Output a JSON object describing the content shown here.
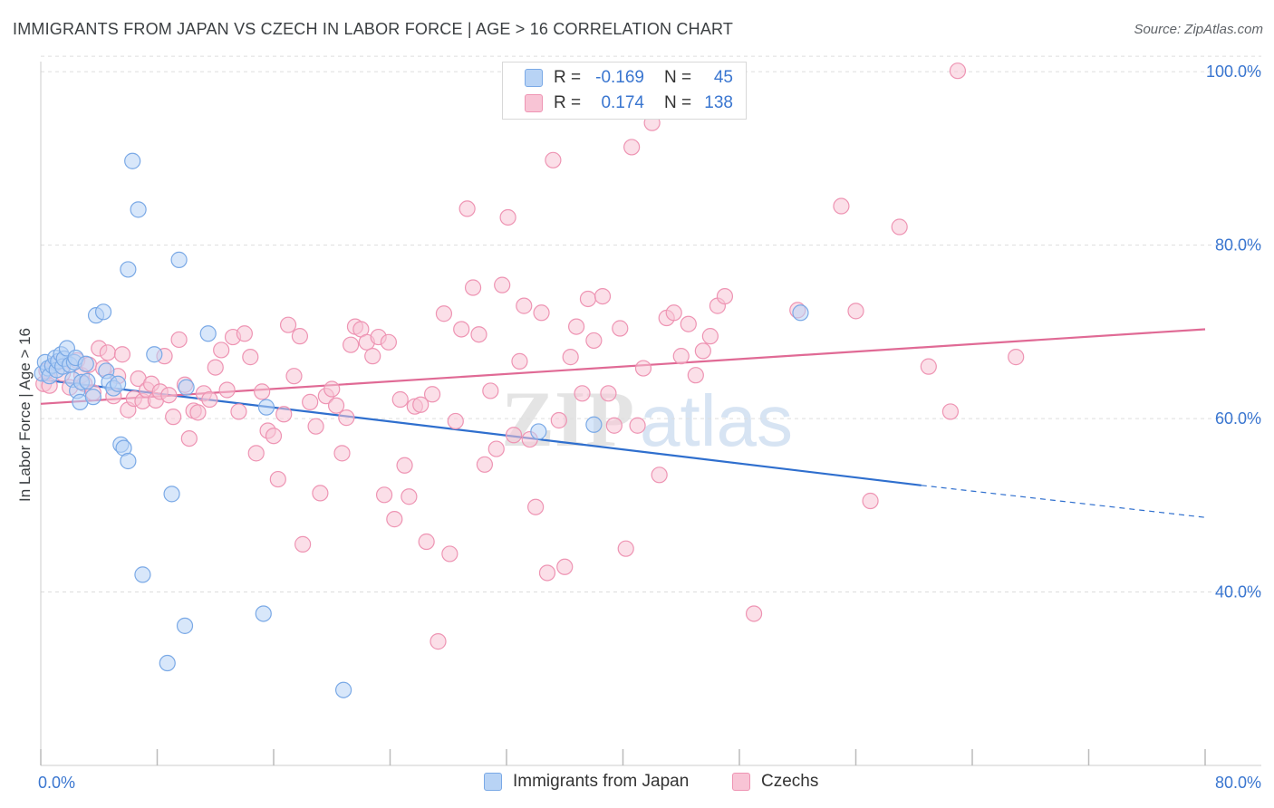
{
  "header": {
    "title": "IMMIGRANTS FROM JAPAN VS CZECH IN LABOR FORCE | AGE > 16 CORRELATION CHART",
    "source": "Source: ZipAtlas.com"
  },
  "watermark": {
    "part1": "ZIP",
    "part2": "atlas"
  },
  "legend": {
    "rows": [
      {
        "r_label": "R =",
        "r_value": "-0.169",
        "n_label": "N =",
        "n_value": "45"
      },
      {
        "r_label": "R =",
        "r_value": "0.174",
        "n_label": "N =",
        "n_value": "138"
      }
    ]
  },
  "chart_data": {
    "type": "scatter",
    "ylabel": "In Labor Force | Age > 16",
    "xlim": [
      0,
      80
    ],
    "ylim": [
      20,
      102
    ],
    "x_tick_labels": [
      {
        "value": 0,
        "label": "0.0%"
      },
      {
        "value": 80,
        "label": "80.0%"
      }
    ],
    "x_minor_ticks": [
      8,
      16,
      24,
      32,
      40,
      48,
      56,
      64,
      72
    ],
    "y_tick_labels": [
      {
        "value": 40,
        "label": "40.0%"
      },
      {
        "value": 60,
        "label": "60.0%"
      },
      {
        "value": 80,
        "label": "80.0%"
      },
      {
        "value": 100,
        "label": "100.0%"
      }
    ],
    "grid": true,
    "legend_position": "top-center",
    "colors": {
      "japan_fill": "#b8d3f5",
      "japan_stroke": "#7aa9e6",
      "japan_line": "#2f6fce",
      "czech_fill": "#f8c4d5",
      "czech_stroke": "#ee94b3",
      "czech_line": "#e06a95",
      "value_text": "#3a76d0",
      "grid": "#dddddd"
    },
    "series": [
      {
        "name": "Immigrants from Japan",
        "key": "japan",
        "trend": {
          "x0": 0,
          "y0": 64.5,
          "x1": 60.5,
          "y1": 52.3,
          "dash_to_x": 80,
          "dash_to_y": 48.6
        },
        "points": [
          [
            0.1,
            65.2
          ],
          [
            0.3,
            66.5
          ],
          [
            0.5,
            65.8
          ],
          [
            0.6,
            64.9
          ],
          [
            0.8,
            66.1
          ],
          [
            1.0,
            67.0
          ],
          [
            1.1,
            65.6
          ],
          [
            1.2,
            66.6
          ],
          [
            1.4,
            67.4
          ],
          [
            1.5,
            66.0
          ],
          [
            1.6,
            66.9
          ],
          [
            1.8,
            68.1
          ],
          [
            2.0,
            66.2
          ],
          [
            2.2,
            64.5
          ],
          [
            2.3,
            66.5
          ],
          [
            2.4,
            67.0
          ],
          [
            2.5,
            63.2
          ],
          [
            2.7,
            61.9
          ],
          [
            2.8,
            64.2
          ],
          [
            3.1,
            66.3
          ],
          [
            3.2,
            64.3
          ],
          [
            3.6,
            62.5
          ],
          [
            3.8,
            71.9
          ],
          [
            4.3,
            72.3
          ],
          [
            4.5,
            65.5
          ],
          [
            4.7,
            64.2
          ],
          [
            5.0,
            63.5
          ],
          [
            5.3,
            64.0
          ],
          [
            5.5,
            57.0
          ],
          [
            5.7,
            56.6
          ],
          [
            6.0,
            55.1
          ],
          [
            6.0,
            77.2
          ],
          [
            6.3,
            89.7
          ],
          [
            6.7,
            84.1
          ],
          [
            7.0,
            42.0
          ],
          [
            7.8,
            67.4
          ],
          [
            8.7,
            31.8
          ],
          [
            9.0,
            51.3
          ],
          [
            9.5,
            78.3
          ],
          [
            9.9,
            36.1
          ],
          [
            10.0,
            63.6
          ],
          [
            11.5,
            69.8
          ],
          [
            15.5,
            61.3
          ],
          [
            15.3,
            37.5
          ],
          [
            20.8,
            28.7
          ],
          [
            34.2,
            58.5
          ],
          [
            38.0,
            59.3
          ],
          [
            52.2,
            72.2
          ]
        ]
      },
      {
        "name": "Czechs",
        "key": "czech",
        "trend": {
          "x0": 0,
          "y0": 61.7,
          "x1": 80,
          "y1": 70.3
        },
        "points": [
          [
            0.2,
            64.0
          ],
          [
            0.4,
            65.5
          ],
          [
            0.6,
            63.8
          ],
          [
            1.0,
            66.3
          ],
          [
            1.5,
            65.2
          ],
          [
            2.0,
            63.6
          ],
          [
            2.5,
            66.7
          ],
          [
            2.8,
            65.0
          ],
          [
            3.0,
            64.0
          ],
          [
            3.3,
            66.2
          ],
          [
            3.6,
            63.0
          ],
          [
            4.0,
            68.1
          ],
          [
            4.3,
            65.8
          ],
          [
            4.6,
            67.6
          ],
          [
            5.0,
            62.6
          ],
          [
            5.3,
            64.9
          ],
          [
            5.6,
            67.4
          ],
          [
            6.0,
            61.0
          ],
          [
            6.4,
            62.3
          ],
          [
            6.7,
            64.6
          ],
          [
            7.0,
            62.0
          ],
          [
            7.3,
            63.3
          ],
          [
            7.6,
            64.0
          ],
          [
            7.9,
            62.1
          ],
          [
            8.2,
            63.1
          ],
          [
            8.5,
            67.2
          ],
          [
            8.8,
            62.7
          ],
          [
            9.1,
            60.2
          ],
          [
            9.5,
            69.1
          ],
          [
            9.9,
            63.9
          ],
          [
            10.2,
            57.7
          ],
          [
            10.5,
            60.9
          ],
          [
            10.8,
            60.7
          ],
          [
            11.2,
            62.9
          ],
          [
            11.6,
            62.2
          ],
          [
            12.0,
            65.9
          ],
          [
            12.4,
            67.9
          ],
          [
            12.8,
            63.3
          ],
          [
            13.2,
            69.4
          ],
          [
            13.6,
            60.8
          ],
          [
            14.0,
            69.8
          ],
          [
            14.4,
            67.1
          ],
          [
            14.8,
            56.0
          ],
          [
            15.2,
            63.1
          ],
          [
            15.6,
            58.6
          ],
          [
            16.0,
            58.0
          ],
          [
            16.3,
            53.0
          ],
          [
            16.7,
            60.5
          ],
          [
            17.0,
            70.8
          ],
          [
            17.4,
            64.9
          ],
          [
            17.8,
            69.5
          ],
          [
            18.0,
            45.5
          ],
          [
            18.5,
            61.9
          ],
          [
            18.9,
            59.1
          ],
          [
            19.2,
            51.4
          ],
          [
            19.6,
            62.6
          ],
          [
            20.0,
            63.4
          ],
          [
            20.3,
            61.5
          ],
          [
            20.7,
            56.0
          ],
          [
            21.0,
            60.1
          ],
          [
            21.3,
            68.5
          ],
          [
            21.6,
            70.6
          ],
          [
            22.0,
            70.3
          ],
          [
            22.4,
            68.8
          ],
          [
            22.8,
            67.2
          ],
          [
            23.2,
            69.4
          ],
          [
            23.6,
            51.2
          ],
          [
            23.9,
            68.8
          ],
          [
            24.3,
            48.4
          ],
          [
            24.7,
            62.2
          ],
          [
            25.0,
            54.6
          ],
          [
            25.3,
            51.0
          ],
          [
            25.7,
            61.4
          ],
          [
            26.1,
            61.6
          ],
          [
            26.5,
            45.8
          ],
          [
            26.9,
            62.8
          ],
          [
            27.3,
            34.3
          ],
          [
            27.7,
            72.1
          ],
          [
            28.1,
            44.4
          ],
          [
            28.5,
            59.7
          ],
          [
            28.9,
            70.3
          ],
          [
            29.3,
            84.2
          ],
          [
            29.7,
            75.1
          ],
          [
            30.1,
            69.7
          ],
          [
            30.5,
            54.7
          ],
          [
            30.9,
            63.2
          ],
          [
            31.3,
            56.5
          ],
          [
            31.7,
            75.4
          ],
          [
            32.1,
            83.2
          ],
          [
            32.5,
            58.1
          ],
          [
            32.9,
            66.6
          ],
          [
            33.2,
            73.0
          ],
          [
            33.6,
            57.6
          ],
          [
            34.0,
            49.8
          ],
          [
            34.4,
            72.2
          ],
          [
            34.8,
            42.2
          ],
          [
            35.2,
            89.8
          ],
          [
            35.6,
            59.8
          ],
          [
            36.0,
            42.9
          ],
          [
            36.4,
            67.1
          ],
          [
            36.8,
            70.6
          ],
          [
            37.2,
            62.9
          ],
          [
            37.6,
            73.8
          ],
          [
            38.0,
            69.0
          ],
          [
            38.6,
            74.1
          ],
          [
            39.0,
            62.9
          ],
          [
            39.4,
            59.2
          ],
          [
            39.8,
            70.4
          ],
          [
            40.2,
            45.0
          ],
          [
            40.6,
            91.3
          ],
          [
            41.0,
            59.2
          ],
          [
            41.4,
            65.8
          ],
          [
            42.0,
            94.1
          ],
          [
            42.5,
            53.5
          ],
          [
            43.0,
            71.6
          ],
          [
            43.5,
            72.2
          ],
          [
            44.0,
            67.2
          ],
          [
            44.5,
            70.9
          ],
          [
            45.0,
            65.0
          ],
          [
            45.5,
            67.8
          ],
          [
            46.0,
            69.5
          ],
          [
            46.5,
            73.0
          ],
          [
            47.0,
            74.1
          ],
          [
            49.0,
            37.5
          ],
          [
            52.0,
            72.5
          ],
          [
            55.0,
            84.5
          ],
          [
            56.0,
            72.4
          ],
          [
            57.0,
            50.5
          ],
          [
            59.0,
            82.1
          ],
          [
            61.0,
            66.0
          ],
          [
            62.5,
            60.8
          ],
          [
            63.0,
            100.1
          ],
          [
            67.0,
            67.1
          ]
        ]
      }
    ]
  },
  "bottom_legend": {
    "items": [
      {
        "label": "Immigrants from Japan"
      },
      {
        "label": "Czechs"
      }
    ]
  }
}
